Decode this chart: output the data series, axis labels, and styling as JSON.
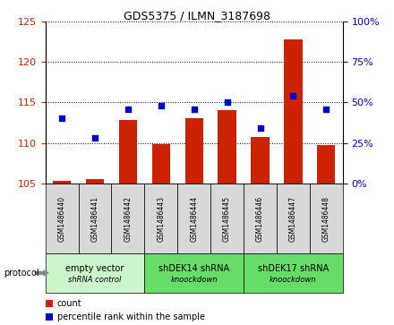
{
  "title": "GDS5375 / ILMN_3187698",
  "samples": [
    "GSM1486440",
    "GSM1486441",
    "GSM1486442",
    "GSM1486443",
    "GSM1486444",
    "GSM1486445",
    "GSM1486446",
    "GSM1486447",
    "GSM1486448"
  ],
  "counts": [
    105.3,
    105.6,
    112.8,
    109.9,
    113.0,
    114.1,
    110.7,
    122.8,
    109.7
  ],
  "percentiles": [
    40,
    28,
    46,
    48,
    46,
    50,
    34,
    54,
    46
  ],
  "ylim_left": [
    105,
    125
  ],
  "ylim_right": [
    0,
    100
  ],
  "yticks_left": [
    105,
    110,
    115,
    120,
    125
  ],
  "yticks_right": [
    0,
    25,
    50,
    75,
    100
  ],
  "bar_color": "#cc2200",
  "dot_color": "#0000cc",
  "bar_bottom": 105,
  "group_labels": [
    "empty vector\nshRNA control",
    "shDEK14 shRNA\nknoockdown",
    "shDEK17 shRNA\nknoockdown"
  ],
  "group_starts": [
    0,
    3,
    6
  ],
  "group_ends": [
    3,
    6,
    9
  ],
  "group_colors": [
    "#ccf5cc",
    "#66dd66",
    "#66dd66"
  ],
  "sample_box_color": "#d8d8d8",
  "protocol_label": "protocol",
  "legend_count_label": "count",
  "legend_pct_label": "percentile rank within the sample",
  "background_color": "#ffffff",
  "title_fontsize": 9,
  "axis_fontsize": 8,
  "sample_fontsize": 5.5,
  "group_fontsize": 7,
  "legend_fontsize": 7
}
